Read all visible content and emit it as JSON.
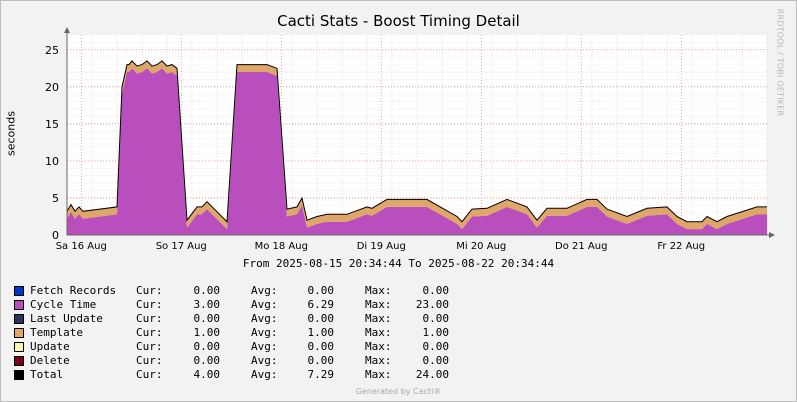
{
  "chart_data": {
    "type": "area",
    "title": "Cacti Stats - Boost Timing Detail",
    "ylabel": "seconds",
    "xlabel": "",
    "watermark": "RRDTOOL / TOBI OETIKER",
    "ylim": [
      0,
      27
    ],
    "yticks": [
      0,
      5,
      10,
      15,
      20,
      25
    ],
    "grid": true,
    "stacked": true,
    "x_range": [
      "2025-08-15 20:34:44",
      "2025-08-22 20:34:44"
    ],
    "x_tick_labels": [
      "Sa 16 Aug",
      "So 17 Aug",
      "Mo 18 Aug",
      "Di 19 Aug",
      "Mi 20 Aug",
      "Do 21 Aug",
      "Fr 22 Aug"
    ],
    "x_tick_days": [
      0.1425,
      1.1425,
      2.1425,
      3.1425,
      4.1425,
      5.1425,
      6.1425
    ],
    "x_days": [
      0,
      0.04,
      0.08,
      0.1,
      0.12,
      0.16,
      0.5,
      0.55,
      0.6,
      0.62,
      0.65,
      0.7,
      0.75,
      0.8,
      0.85,
      0.9,
      0.95,
      1.0,
      1.05,
      1.1,
      1.2,
      1.3,
      1.35,
      1.4,
      1.6,
      1.7,
      2.0,
      2.1,
      2.2,
      2.3,
      2.35,
      2.4,
      2.5,
      2.6,
      2.8,
      3.0,
      3.05,
      3.2,
      3.3,
      3.6,
      3.9,
      3.95,
      4.05,
      4.2,
      4.4,
      4.6,
      4.7,
      4.8,
      5.0,
      5.2,
      5.3,
      5.4,
      5.6,
      5.8,
      6.0,
      6.1,
      6.2,
      6.35,
      6.4,
      6.5,
      6.6,
      6.9,
      7.0
    ],
    "series": [
      {
        "name": "Fetch Records",
        "color": "#0033cc",
        "values": [
          0,
          0,
          0,
          0,
          0,
          0,
          0,
          0,
          0,
          0,
          0,
          0,
          0,
          0,
          0,
          0,
          0,
          0,
          0,
          0,
          0,
          0,
          0,
          0,
          0,
          0,
          0,
          0,
          0,
          0,
          0,
          0,
          0,
          0,
          0,
          0,
          0,
          0,
          0,
          0,
          0,
          0,
          0,
          0,
          0,
          0,
          0,
          0,
          0,
          0,
          0,
          0,
          0,
          0,
          0,
          0,
          0,
          0,
          0,
          0,
          0,
          0,
          0
        ]
      },
      {
        "name": "Cycle Time",
        "color": "#b94fbd",
        "values": [
          2.2,
          3.1,
          2.2,
          2.5,
          2.8,
          2.2,
          2.8,
          19,
          22,
          22,
          22.5,
          21.8,
          22,
          22.5,
          21.8,
          22,
          22.5,
          21.8,
          22,
          21.5,
          1,
          2.8,
          2.8,
          3.5,
          0.8,
          22,
          22,
          21.5,
          2.5,
          2.8,
          4,
          1,
          1.5,
          1.8,
          1.8,
          2.8,
          2.6,
          3.8,
          3.8,
          3.8,
          1.5,
          0.8,
          2.5,
          2.6,
          3.8,
          2.8,
          1,
          2.6,
          2.6,
          3.8,
          3.8,
          2.5,
          1.5,
          2.6,
          2.8,
          1.5,
          0.8,
          0.8,
          1.5,
          0.8,
          1.5,
          2.8,
          2.8
        ]
      },
      {
        "name": "Last Update",
        "color": "#303060",
        "values": [
          0,
          0,
          0,
          0,
          0,
          0,
          0,
          0,
          0,
          0,
          0,
          0,
          0,
          0,
          0,
          0,
          0,
          0,
          0,
          0,
          0,
          0,
          0,
          0,
          0,
          0,
          0,
          0,
          0,
          0,
          0,
          0,
          0,
          0,
          0,
          0,
          0,
          0,
          0,
          0,
          0,
          0,
          0,
          0,
          0,
          0,
          0,
          0,
          0,
          0,
          0,
          0,
          0,
          0,
          0,
          0,
          0,
          0,
          0,
          0,
          0,
          0,
          0
        ]
      },
      {
        "name": "Template",
        "color": "#dfa66a",
        "values": [
          1,
          1,
          1,
          1,
          1,
          1,
          1,
          1,
          1,
          1,
          1,
          1,
          1,
          1,
          1,
          1,
          1,
          1,
          1,
          1,
          1,
          1,
          1,
          1,
          1,
          1,
          1,
          1,
          1,
          1,
          1,
          1,
          1,
          1,
          1,
          1,
          1,
          1,
          1,
          1,
          1,
          1,
          1,
          1,
          1,
          1,
          1,
          1,
          1,
          1,
          1,
          1,
          1,
          1,
          1,
          1,
          1,
          1,
          1,
          1,
          1,
          1,
          1
        ]
      },
      {
        "name": "Update",
        "color": "#f5f3b5",
        "values": [
          0,
          0,
          0,
          0,
          0,
          0,
          0,
          0,
          0,
          0,
          0,
          0,
          0,
          0,
          0,
          0,
          0,
          0,
          0,
          0,
          0,
          0,
          0,
          0,
          0,
          0,
          0,
          0,
          0,
          0,
          0,
          0,
          0,
          0,
          0,
          0,
          0,
          0,
          0,
          0,
          0,
          0,
          0,
          0,
          0,
          0,
          0,
          0,
          0,
          0,
          0,
          0,
          0,
          0,
          0,
          0,
          0,
          0,
          0,
          0,
          0,
          0,
          0
        ]
      },
      {
        "name": "Delete",
        "color": "#7b0018",
        "values": [
          0,
          0,
          0,
          0,
          0,
          0,
          0,
          0,
          0,
          0,
          0,
          0,
          0,
          0,
          0,
          0,
          0,
          0,
          0,
          0,
          0,
          0,
          0,
          0,
          0,
          0,
          0,
          0,
          0,
          0,
          0,
          0,
          0,
          0,
          0,
          0,
          0,
          0,
          0,
          0,
          0,
          0,
          0,
          0,
          0,
          0,
          0,
          0,
          0,
          0,
          0,
          0,
          0,
          0,
          0,
          0,
          0,
          0,
          0,
          0,
          0,
          0,
          0
        ]
      }
    ],
    "total_line": {
      "name": "Total",
      "color": "#000000"
    }
  },
  "range_label": "From 2025-08-15 20:34:44 To 2025-08-22 20:34:44",
  "legend": [
    {
      "name": "Fetch Records",
      "color": "#0033cc",
      "cur_label": "Cur:",
      "cur": "0.00",
      "avg_label": "Avg:",
      "avg": "0.00",
      "max_label": "Max:",
      "max": "0.00"
    },
    {
      "name": "Cycle Time",
      "color": "#b94fbd",
      "cur_label": "Cur:",
      "cur": "3.00",
      "avg_label": "Avg:",
      "avg": "6.29",
      "max_label": "Max:",
      "max": "23.00"
    },
    {
      "name": "Last Update",
      "color": "#303060",
      "cur_label": "Cur:",
      "cur": "0.00",
      "avg_label": "Avg:",
      "avg": "0.00",
      "max_label": "Max:",
      "max": "0.00"
    },
    {
      "name": "Template",
      "color": "#dfa66a",
      "cur_label": "Cur:",
      "cur": "1.00",
      "avg_label": "Avg:",
      "avg": "1.00",
      "max_label": "Max:",
      "max": "1.00"
    },
    {
      "name": "Update",
      "color": "#f5f3b5",
      "cur_label": "Cur:",
      "cur": "0.00",
      "avg_label": "Avg:",
      "avg": "0.00",
      "max_label": "Max:",
      "max": "0.00"
    },
    {
      "name": "Delete",
      "color": "#7b0018",
      "cur_label": "Cur:",
      "cur": "0.00",
      "avg_label": "Avg:",
      "avg": "0.00",
      "max_label": "Max:",
      "max": "0.00"
    },
    {
      "name": "Total",
      "color": "#000000",
      "cur_label": "Cur:",
      "cur": "4.00",
      "avg_label": "Avg:",
      "avg": "7.29",
      "max_label": "Max:",
      "max": "24.00"
    }
  ],
  "footer": "Generated by Cacti®"
}
